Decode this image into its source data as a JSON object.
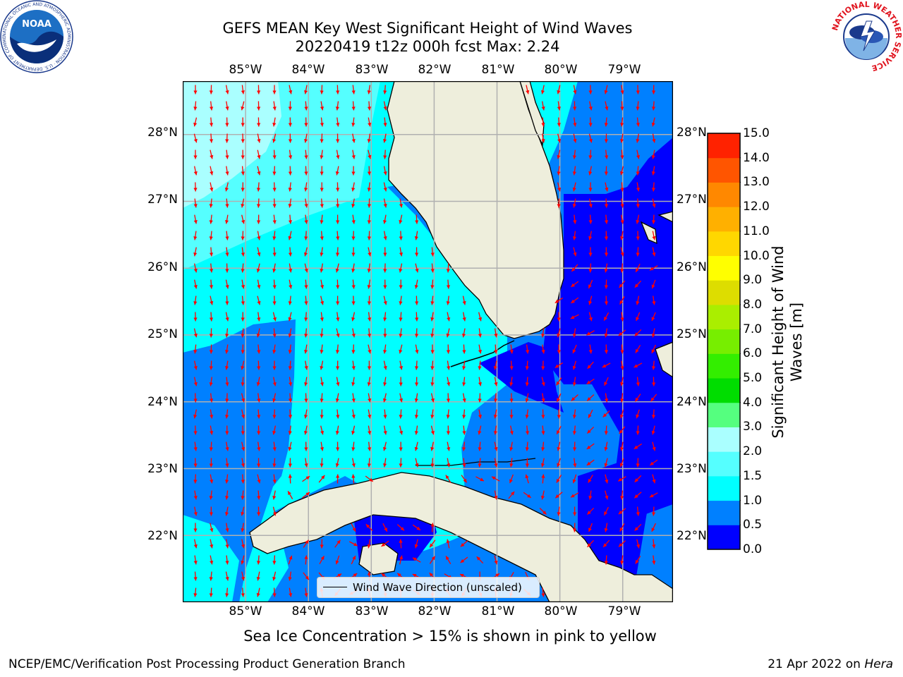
{
  "title": {
    "line1": "GEFS MEAN Key West Significant Height of Wind Waves",
    "line2": "20220419 t12z 000h fcst   Max: 2.24"
  },
  "map": {
    "lon_labels": [
      "85°W",
      "84°W",
      "83°W",
      "82°W",
      "81°W",
      "80°W",
      "79°W"
    ],
    "lat_labels": [
      "28°N",
      "27°N",
      "26°N",
      "25°N",
      "24°N",
      "23°N",
      "22°N"
    ],
    "lon_range": [
      -86.0,
      -78.2
    ],
    "lat_range": [
      21.0,
      28.8
    ],
    "land_color": "#eeeedc",
    "arrow_color": "#ff0000",
    "coast_color": "#000000",
    "grid_color": "#b0b0b0"
  },
  "colorbar": {
    "title": "Significant Height of Wind Waves [m]",
    "ticks": [
      "15.0",
      "14.0",
      "13.0",
      "12.0",
      "11.0",
      "10.0",
      "9.0",
      "8.0",
      "7.0",
      "6.0",
      "5.0",
      "4.0",
      "3.0",
      "2.0",
      "1.5",
      "1.0",
      "0.5",
      "0.0"
    ],
    "levels": [
      0.0,
      0.5,
      1.0,
      1.5,
      2.0,
      3.0,
      4.0,
      5.0,
      6.0,
      7.0,
      8.0,
      9.0,
      10.0,
      11.0,
      12.0,
      13.0,
      14.0,
      15.0
    ],
    "colors": [
      "#0000ff",
      "#0080ff",
      "#00ffff",
      "#55ffff",
      "#aaffff",
      "#55ff7f",
      "#00dd00",
      "#33ee00",
      "#77ee00",
      "#aaee00",
      "#dddd00",
      "#ffff00",
      "#ffd700",
      "#ffb000",
      "#ff8800",
      "#ff5500",
      "#ff2200",
      "#ff0000"
    ]
  },
  "legend": {
    "label": "Wind Wave Direction (unscaled)"
  },
  "sea_ice_note": "Sea Ice Concentration > 15% is shown in pink to yellow",
  "footer": {
    "left": "NCEP/EMC/Verification Post Processing Product Generation Branch",
    "right_date": "21 Apr 2022 on ",
    "right_host": "Hera"
  },
  "logos": {
    "noaa": "NOAA",
    "noaa_ring": "NATIONAL OCEANIC AND ATMOSPHERIC ADMINISTRATION · U.S. DEPARTMENT OF COMMERCE ·",
    "nws_ring": "NATIONAL WEATHER SERVICE"
  },
  "chart_data": {
    "type": "heatmap",
    "variable": "Significant Height of Wind Waves [m]",
    "max": 2.24,
    "regions": [
      {
        "band": "1.5-2.0",
        "lon": [
          -86.0,
          -84.5
        ],
        "lat": [
          26.0,
          28.8
        ]
      },
      {
        "band": "1.0-1.5",
        "lon": [
          -86.0,
          -82.8
        ],
        "lat": [
          22.9,
          26.0
        ]
      },
      {
        "band": "0.5-1.0",
        "lon": [
          -86.0,
          -84.6
        ],
        "lat": [
          22.4,
          25.2
        ]
      },
      {
        "band": "0.5-1.0",
        "lon": [
          -82.0,
          -80.3
        ],
        "lat": [
          23.3,
          26.6
        ]
      },
      {
        "band": "0.0-0.5",
        "lon": [
          -80.0,
          -78.2
        ],
        "lat": [
          22.7,
          27.1
        ]
      },
      {
        "band": "0.0-0.5",
        "lon": [
          -83.3,
          -82.0
        ],
        "lat": [
          21.5,
          22.5
        ]
      }
    ]
  }
}
